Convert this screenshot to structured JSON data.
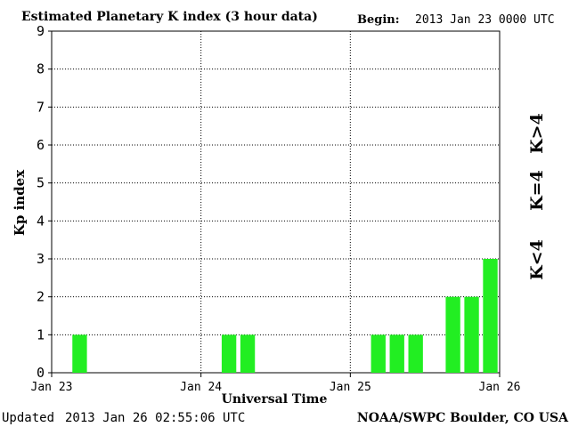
{
  "header": {
    "title": "Estimated Planetary K index (3 hour data)",
    "begin_label": "Begin:",
    "begin_value": "2013 Jan 23 0000 UTC"
  },
  "footer": {
    "updated_label": "Updated",
    "updated_value": "2013 Jan 26 02:55:06 UTC",
    "credit": "NOAA/SWPC Boulder, CO USA"
  },
  "legend": {
    "high": {
      "label": "K>4",
      "color": "#ff2a00"
    },
    "equal": {
      "label": "K=4",
      "color": "#ffd400"
    },
    "low": {
      "label": "K<4",
      "color": "#22ee22"
    }
  },
  "chart_data": {
    "type": "bar",
    "title": "Estimated Planetary K index (3 hour data)",
    "xlabel": "Universal Time",
    "ylabel": "Kp index",
    "ylim": [
      0,
      9
    ],
    "y_ticks": [
      "0",
      "1",
      "2",
      "3",
      "4",
      "5",
      "6",
      "7",
      "8",
      "9"
    ],
    "x_ticks": [
      "Jan 23",
      "Jan 24",
      "Jan 25",
      "Jan 26"
    ],
    "grid": true,
    "bar_color": "#22ee22",
    "interval_hours": 3,
    "series": [
      {
        "values": [
          0,
          1,
          0,
          0,
          0,
          0,
          0,
          0,
          0,
          1,
          1,
          0,
          0,
          0,
          0,
          0,
          0,
          1,
          1,
          1,
          0,
          2,
          2,
          3
        ]
      }
    ]
  }
}
